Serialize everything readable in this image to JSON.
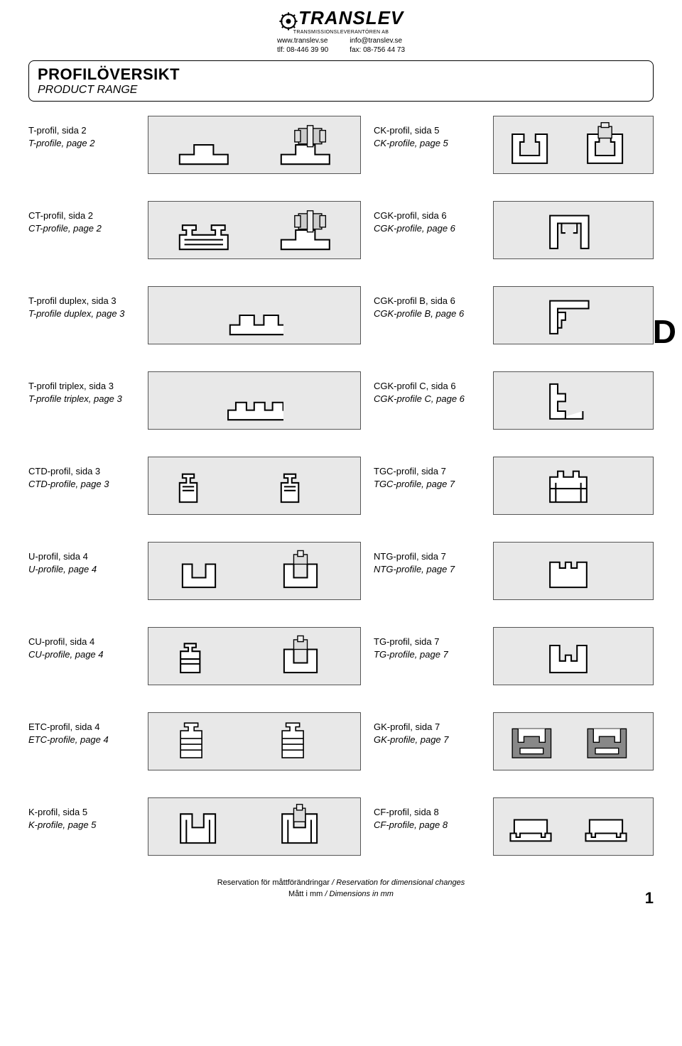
{
  "company": {
    "name": "TRANSLEV",
    "tagline": "TRANSMISSIONSLEVERANTÖREN AB",
    "web": "www.translev.se",
    "tel": "tlf: 08-446 39 90",
    "email": "info@translev.se",
    "fax": "fax: 08-756 44 73"
  },
  "title": {
    "main": "PROFILÖVERSIKT",
    "sub": "PRODUCT RANGE"
  },
  "side_letter": "D",
  "rows": [
    {
      "left_sv": "T-profil, sida 2",
      "left_en": "T-profile, page 2",
      "right_sv": "CK-profil, sida 5",
      "right_en": "CK-profile, page 5",
      "left_svg": "t",
      "right_svg": "ck"
    },
    {
      "left_sv": "CT-profil, sida 2",
      "left_en": "CT-profile, page 2",
      "right_sv": "CGK-profil, sida 6",
      "right_en": "CGK-profile, page 6",
      "left_svg": "ct",
      "right_svg": "cgk"
    },
    {
      "left_sv": "T-profil duplex, sida 3",
      "left_en": "T-profile duplex, page 3",
      "right_sv": "CGK-profil B, sida 6",
      "right_en": "CGK-profile B, page 6",
      "left_svg": "tdup",
      "right_svg": "cgkb"
    },
    {
      "left_sv": "T-profil triplex, sida 3",
      "left_en": "T-profile triplex, page 3",
      "right_sv": "CGK-profil C, sida 6",
      "right_en": "CGK-profile C, page 6",
      "left_svg": "ttrip",
      "right_svg": "cgkc"
    },
    {
      "left_sv": "CTD-profil, sida 3",
      "left_en": "CTD-profile, page 3",
      "right_sv": "TGC-profil, sida 7",
      "right_en": "TGC-profile, page 7",
      "left_svg": "ctd",
      "right_svg": "tgc"
    },
    {
      "left_sv": "U-profil, sida 4",
      "left_en": "U-profile, page 4",
      "right_sv": "NTG-profil, sida 7",
      "right_en": "NTG-profile, page 7",
      "left_svg": "u",
      "right_svg": "ntg"
    },
    {
      "left_sv": "CU-profil, sida 4",
      "left_en": "CU-profile, page 4",
      "right_sv": "TG-profil, sida 7",
      "right_en": "TG-profile, page 7",
      "left_svg": "cu",
      "right_svg": "tg"
    },
    {
      "left_sv": "ETC-profil, sida 4",
      "left_en": "ETC-profile, page 4",
      "right_sv": "GK-profil, sida 7",
      "right_en": "GK-profile, page 7",
      "left_svg": "etc",
      "right_svg": "gk"
    },
    {
      "left_sv": "K-profil, sida 5",
      "left_en": "K-profile, page 5",
      "right_sv": "CF-profil, sida 8",
      "right_en": "CF-profile, page 8",
      "left_svg": "k",
      "right_svg": "cf"
    }
  ],
  "footer": {
    "line1_sv": "Reservation för måttförändringar",
    "line1_en": "Reservation for dimensional changes",
    "line2_sv": "Mått i mm",
    "line2_en": "Dimensions in mm",
    "sep": " / "
  },
  "page_number": "1",
  "colors": {
    "box_bg": "#e8e8e8",
    "stroke": "#000000"
  }
}
